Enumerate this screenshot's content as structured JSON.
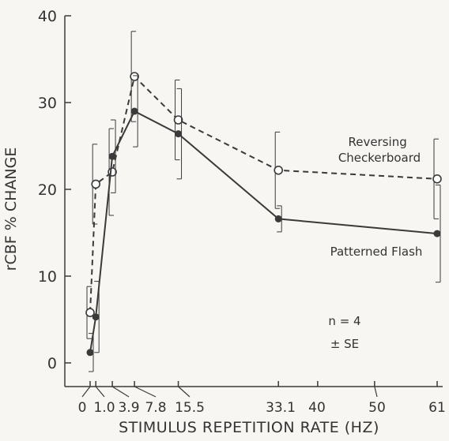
{
  "chart_data": {
    "type": "line",
    "title": "",
    "xlabel": "STIMULUS REPETITION RATE (HZ)",
    "ylabel": "rCBF % CHANGE",
    "ylim": [
      0,
      40
    ],
    "yticks": [
      0,
      10,
      20,
      30,
      40
    ],
    "xticks": [
      "0",
      "1.0",
      "3.9",
      "7.8",
      "15.5",
      "33.1",
      "40",
      "50",
      "61"
    ],
    "grid": false,
    "series": [
      {
        "name": "Reversing Checkerboard",
        "style": "dashed",
        "marker": "open-circle",
        "x": [
          0,
          1.0,
          3.9,
          7.8,
          15.5,
          33.1,
          61
        ],
        "y": [
          5.8,
          20.6,
          22.0,
          33.0,
          28.0,
          22.2,
          21.2
        ],
        "se": [
          3.0,
          4.6,
          5.0,
          5.2,
          4.6,
          4.4,
          4.6
        ]
      },
      {
        "name": "Patterned Flash",
        "style": "solid",
        "marker": "filled-circle",
        "x": [
          0,
          1.0,
          3.9,
          7.8,
          15.5,
          33.1,
          61
        ],
        "y": [
          1.2,
          5.3,
          23.8,
          29.0,
          26.4,
          16.6,
          14.9
        ],
        "se": [
          2.2,
          4.1,
          4.2,
          4.1,
          5.2,
          1.5,
          5.6
        ]
      }
    ],
    "annotations": [
      "n = 4",
      "± SE"
    ]
  },
  "colors": {
    "ink": "#3a3a3a",
    "background": "#f7f6f2"
  }
}
